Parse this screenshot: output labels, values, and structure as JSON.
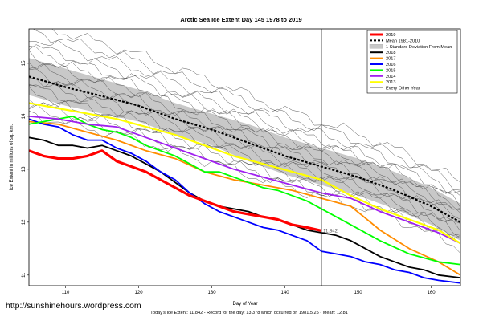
{
  "page": {
    "url_text": "http://sunshinehours.wordpress.com",
    "footer_text": "Today's Ice Extent: 11.842  - Record for the day: 13.378 which occurred on 1981.5.25  - Mean: 12.81"
  },
  "chart_data": {
    "type": "line",
    "title": "Arctic Sea Ice Extent Day 145 1978 to 2019",
    "xlabel": "Day of Year",
    "ylabel": "Ice Extent in millions of sq. km.",
    "xlim": [
      105,
      164
    ],
    "ylim": [
      10.8,
      15.65
    ],
    "x_ticks": [
      110,
      120,
      130,
      140,
      150,
      160
    ],
    "y_ticks": [
      11,
      12,
      13,
      14,
      15
    ],
    "current_day": 145,
    "current_value_label": "11.842",
    "legend": [
      {
        "label": "2019",
        "color": "#ff0000",
        "style": "thick"
      },
      {
        "label": "Mean 1981-2010",
        "color": "#000000",
        "style": "dashed"
      },
      {
        "label": "1 Standard Deviation From Mean",
        "color": "#c8c8c8",
        "style": "band"
      },
      {
        "label": "2018",
        "color": "#000000",
        "style": "solid"
      },
      {
        "label": "2017",
        "color": "#ff8c00",
        "style": "solid"
      },
      {
        "label": "2016",
        "color": "#0000ff",
        "style": "solid"
      },
      {
        "label": "2015",
        "color": "#00ff00",
        "style": "solid"
      },
      {
        "label": "2014",
        "color": "#a020f0",
        "style": "solid"
      },
      {
        "label": "2013",
        "color": "#ffff00",
        "style": "solid"
      },
      {
        "label": "Every Other Year",
        "color": "#888888",
        "style": "thin"
      }
    ],
    "mean_band": {
      "x": [
        105,
        110,
        115,
        120,
        125,
        130,
        135,
        140,
        145,
        150,
        155,
        160,
        164
      ],
      "mean": [
        14.75,
        14.55,
        14.38,
        14.2,
        13.95,
        13.75,
        13.5,
        13.25,
        13.05,
        12.85,
        12.6,
        12.3,
        12.0
      ],
      "upper": [
        15.1,
        14.9,
        14.7,
        14.5,
        14.25,
        14.05,
        13.85,
        13.6,
        13.4,
        13.2,
        12.95,
        12.65,
        12.35
      ],
      "lower": [
        14.4,
        14.2,
        14.05,
        13.9,
        13.65,
        13.45,
        13.15,
        12.9,
        12.7,
        12.5,
        12.25,
        11.95,
        11.65
      ]
    },
    "series": [
      {
        "name": "2019",
        "color": "#ff0000",
        "width": 3.2,
        "x": [
          105,
          107,
          109,
          111,
          113,
          115,
          117,
          119,
          121,
          123,
          125,
          127,
          129,
          131,
          133,
          135,
          137,
          139,
          141,
          143,
          145
        ],
        "y": [
          13.35,
          13.25,
          13.2,
          13.2,
          13.25,
          13.35,
          13.15,
          13.05,
          12.95,
          12.8,
          12.65,
          12.5,
          12.4,
          12.3,
          12.2,
          12.15,
          12.1,
          12.05,
          11.95,
          11.9,
          11.84
        ]
      },
      {
        "name": "2018",
        "color": "#000000",
        "width": 1.8,
        "x": [
          105,
          107,
          109,
          111,
          113,
          115,
          117,
          119,
          121,
          123,
          125,
          127,
          129,
          131,
          133,
          135,
          137,
          139,
          141,
          143,
          145,
          147,
          149,
          151,
          153,
          155,
          157,
          159,
          161,
          164
        ],
        "y": [
          13.6,
          13.55,
          13.45,
          13.45,
          13.4,
          13.45,
          13.35,
          13.25,
          13.1,
          12.95,
          12.75,
          12.55,
          12.4,
          12.3,
          12.25,
          12.2,
          12.1,
          12.05,
          11.95,
          11.85,
          11.8,
          11.75,
          11.65,
          11.5,
          11.35,
          11.25,
          11.15,
          11.1,
          11.0,
          10.95
        ]
      },
      {
        "name": "2017",
        "color": "#ff8c00",
        "width": 1.8,
        "x": [
          105,
          109,
          113,
          117,
          121,
          125,
          129,
          133,
          137,
          141,
          145,
          149,
          153,
          157,
          161,
          164
        ],
        "y": [
          13.9,
          13.85,
          13.7,
          13.55,
          13.35,
          13.2,
          12.95,
          12.8,
          12.7,
          12.6,
          12.45,
          12.3,
          11.85,
          11.5,
          11.25,
          11.0
        ]
      },
      {
        "name": "2016",
        "color": "#0000ff",
        "width": 1.8,
        "x": [
          105,
          107,
          109,
          111,
          113,
          115,
          117,
          119,
          121,
          123,
          125,
          127,
          129,
          131,
          133,
          135,
          137,
          139,
          141,
          143,
          145,
          147,
          149,
          151,
          153,
          155,
          157,
          159,
          161,
          164
        ],
        "y": [
          13.95,
          13.85,
          13.8,
          13.65,
          13.55,
          13.55,
          13.4,
          13.3,
          13.15,
          12.95,
          12.8,
          12.55,
          12.35,
          12.2,
          12.1,
          12.0,
          11.9,
          11.85,
          11.75,
          11.65,
          11.45,
          11.4,
          11.35,
          11.25,
          11.2,
          11.1,
          11.05,
          10.95,
          10.9,
          10.85
        ]
      },
      {
        "name": "2015",
        "color": "#00ff00",
        "width": 1.8,
        "x": [
          105,
          107,
          109,
          111,
          113,
          115,
          117,
          119,
          121,
          123,
          125,
          127,
          129,
          131,
          133,
          135,
          137,
          139,
          141,
          143,
          145,
          149,
          153,
          157,
          161,
          164
        ],
        "y": [
          13.85,
          13.9,
          13.95,
          14.0,
          13.85,
          13.75,
          13.7,
          13.6,
          13.45,
          13.35,
          13.25,
          13.1,
          12.95,
          12.95,
          12.85,
          12.75,
          12.65,
          12.6,
          12.5,
          12.4,
          12.25,
          11.95,
          11.65,
          11.4,
          11.25,
          11.2
        ]
      },
      {
        "name": "2014",
        "color": "#a020f0",
        "width": 1.8,
        "x": [
          105,
          109,
          113,
          117,
          121,
          125,
          129,
          133,
          137,
          141,
          145,
          149,
          153,
          157,
          161,
          164
        ],
        "y": [
          14.0,
          13.95,
          13.85,
          13.8,
          13.6,
          13.4,
          13.2,
          13.0,
          12.85,
          12.7,
          12.55,
          12.45,
          12.2,
          12.0,
          11.8,
          11.6
        ]
      },
      {
        "name": "2013",
        "color": "#ffff00",
        "width": 2.2,
        "x": [
          105,
          109,
          113,
          117,
          121,
          125,
          129,
          133,
          137,
          141,
          145,
          149,
          153,
          157,
          161,
          164
        ],
        "y": [
          14.25,
          14.15,
          14.05,
          13.95,
          13.8,
          13.65,
          13.45,
          13.25,
          13.1,
          12.95,
          12.8,
          12.5,
          12.25,
          12.05,
          11.85,
          11.6
        ]
      }
    ]
  }
}
